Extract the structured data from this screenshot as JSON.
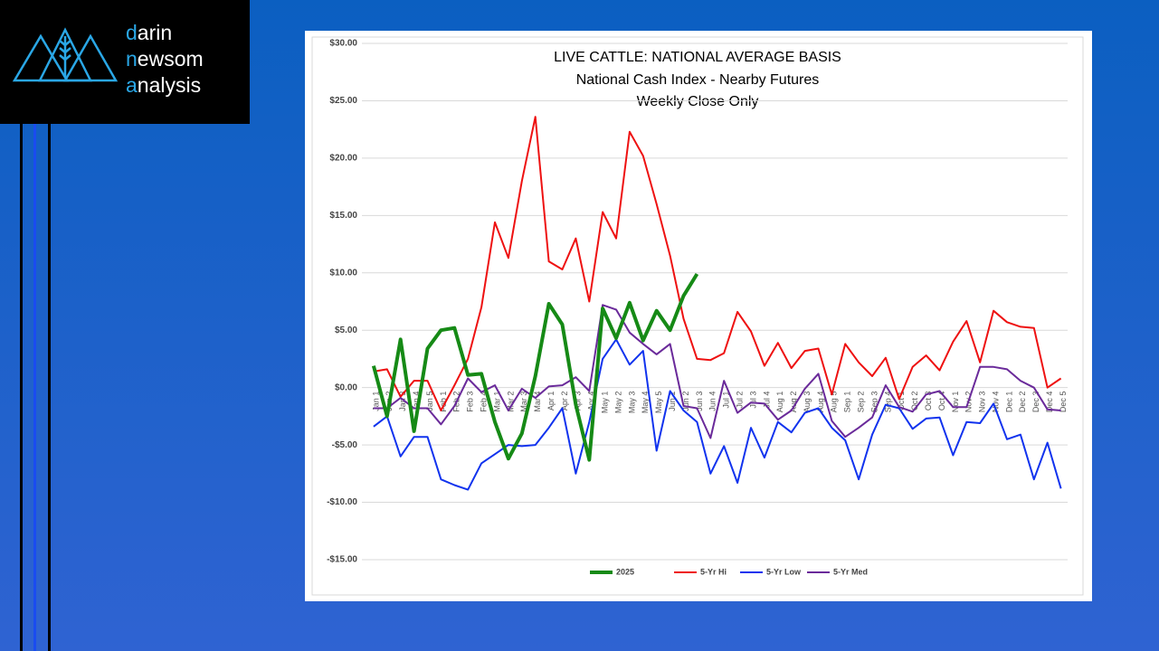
{
  "logo": {
    "lines": [
      "darin",
      "newsom",
      "analysis"
    ]
  },
  "chart_data": {
    "type": "line",
    "title": "LIVE CATTLE: NATIONAL AVERAGE BASIS",
    "subtitles": [
      "National Cash Index - Nearby Futures",
      "Weekly Close Only"
    ],
    "categories": [
      "Jan 1",
      "Jan 2",
      "Jan 3",
      "Jan 4",
      "Jan 5",
      "Feb 1",
      "Feb 2",
      "Feb 3",
      "Feb 4",
      "Mar 1",
      "Mar 2",
      "Mar 3",
      "Mar 4",
      "Apr 1",
      "Apr 2",
      "Apr 3",
      "Apr 4",
      "May 1",
      "May 2",
      "May 3",
      "May 4",
      "May 5",
      "Jun 1",
      "Jun 2",
      "Jun 3",
      "Jun 4",
      "Jul 1",
      "Jul 2",
      "Jul 3",
      "Jul 4",
      "Aug 1",
      "Aug 2",
      "Aug 3",
      "Aug 4",
      "Aug 5",
      "Sep 1",
      "Sep 2",
      "Sep 3",
      "Sep 4",
      "Oct 1",
      "Oct 2",
      "Oct 3",
      "Oct 4",
      "Nov 1",
      "Nov 2",
      "Nov 3",
      "Nov 4",
      "Dec 1",
      "Dec 2",
      "Dec 3",
      "Dec 4",
      "Dec 5"
    ],
    "series": [
      {
        "name": "2025",
        "color": "#168a16",
        "width": 4,
        "values": [
          1.9,
          -2.5,
          4.2,
          -3.8,
          3.4,
          5.0,
          5.2,
          1.1,
          1.2,
          -3.0,
          -6.2,
          -4.0,
          1.0,
          7.3,
          5.5,
          -1.5,
          -6.3,
          6.9,
          4.3,
          7.4,
          4.1,
          6.7,
          5.0,
          8.0,
          9.9,
          null,
          null,
          null,
          null,
          null,
          null,
          null,
          null,
          null,
          null,
          null,
          null,
          null,
          null,
          null,
          null,
          null,
          null,
          null,
          null,
          null,
          null,
          null,
          null,
          null,
          null,
          null
        ]
      },
      {
        "name": "5-Yr Hi",
        "color": "#ee1111",
        "width": 2,
        "values": [
          1.4,
          1.6,
          -0.8,
          0.6,
          0.6,
          -2.0,
          0.2,
          2.5,
          7.0,
          14.4,
          11.3,
          18.0,
          23.6,
          11.0,
          10.3,
          13.0,
          7.5,
          15.3,
          13.0,
          22.3,
          20.2,
          16.0,
          11.5,
          6.0,
          2.5,
          2.4,
          3.0,
          6.6,
          4.9,
          1.9,
          3.9,
          1.7,
          3.2,
          3.4,
          -0.6,
          3.8,
          2.2,
          1.0,
          2.6,
          -1.0,
          1.8,
          2.8,
          1.5,
          4.0,
          5.8,
          2.2,
          6.7,
          5.7,
          5.3,
          5.2,
          0.0,
          0.8
        ]
      },
      {
        "name": "5-Yr Low",
        "color": "#1133ee",
        "width": 2,
        "values": [
          -3.4,
          -2.5,
          -6.0,
          -4.3,
          -4.3,
          -8.0,
          -8.5,
          -8.9,
          -6.6,
          -5.8,
          -5.0,
          -5.1,
          -5.0,
          -3.5,
          -1.8,
          -7.5,
          -3.0,
          2.5,
          4.2,
          2.0,
          3.2,
          -5.5,
          -0.3,
          -2.0,
          -3.0,
          -7.5,
          -5.1,
          -8.3,
          -3.5,
          -6.1,
          -3.0,
          -3.9,
          -2.2,
          -1.8,
          -3.5,
          -4.6,
          -8.0,
          -4.1,
          -1.5,
          -1.8,
          -3.6,
          -2.7,
          -2.6,
          -5.9,
          -3.0,
          -3.1,
          -1.4,
          -4.5,
          -4.1,
          -8.0,
          -4.8,
          -8.8
        ]
      },
      {
        "name": "5-Yr Med",
        "color": "#6a2a9a",
        "width": 2,
        "values": [
          -1.8,
          -1.8,
          -0.9,
          -1.8,
          -1.8,
          -3.2,
          -1.6,
          0.8,
          -0.4,
          0.2,
          -2.0,
          -0.1,
          -0.9,
          0.1,
          0.2,
          0.9,
          -0.3,
          7.2,
          6.8,
          4.8,
          3.8,
          2.9,
          3.8,
          -1.6,
          -1.8,
          -4.4,
          0.6,
          -2.2,
          -1.3,
          -1.4,
          -2.8,
          -2.0,
          -0.1,
          1.2,
          -2.9,
          -4.3,
          -3.5,
          -2.6,
          0.2,
          -1.7,
          -2.1,
          -0.6,
          -0.3,
          -1.7,
          -1.7,
          1.8,
          1.8,
          1.6,
          0.6,
          0.0,
          -1.9,
          -2.0
        ]
      }
    ],
    "ylim": [
      -15,
      30
    ],
    "yticks": [
      {
        "value": -15,
        "label": "-$15.00"
      },
      {
        "value": -10,
        "label": "-$10.00"
      },
      {
        "value": -5,
        "label": "-$5.00"
      },
      {
        "value": 0,
        "label": "$0.00"
      },
      {
        "value": 5,
        "label": "$5.00"
      },
      {
        "value": 10,
        "label": "$10.00"
      },
      {
        "value": 15,
        "label": "$15.00"
      },
      {
        "value": 20,
        "label": "$20.00"
      },
      {
        "value": 25,
        "label": "$25.00"
      },
      {
        "value": 30,
        "label": "$30.00"
      }
    ],
    "grid": true,
    "legend": "bottom"
  }
}
